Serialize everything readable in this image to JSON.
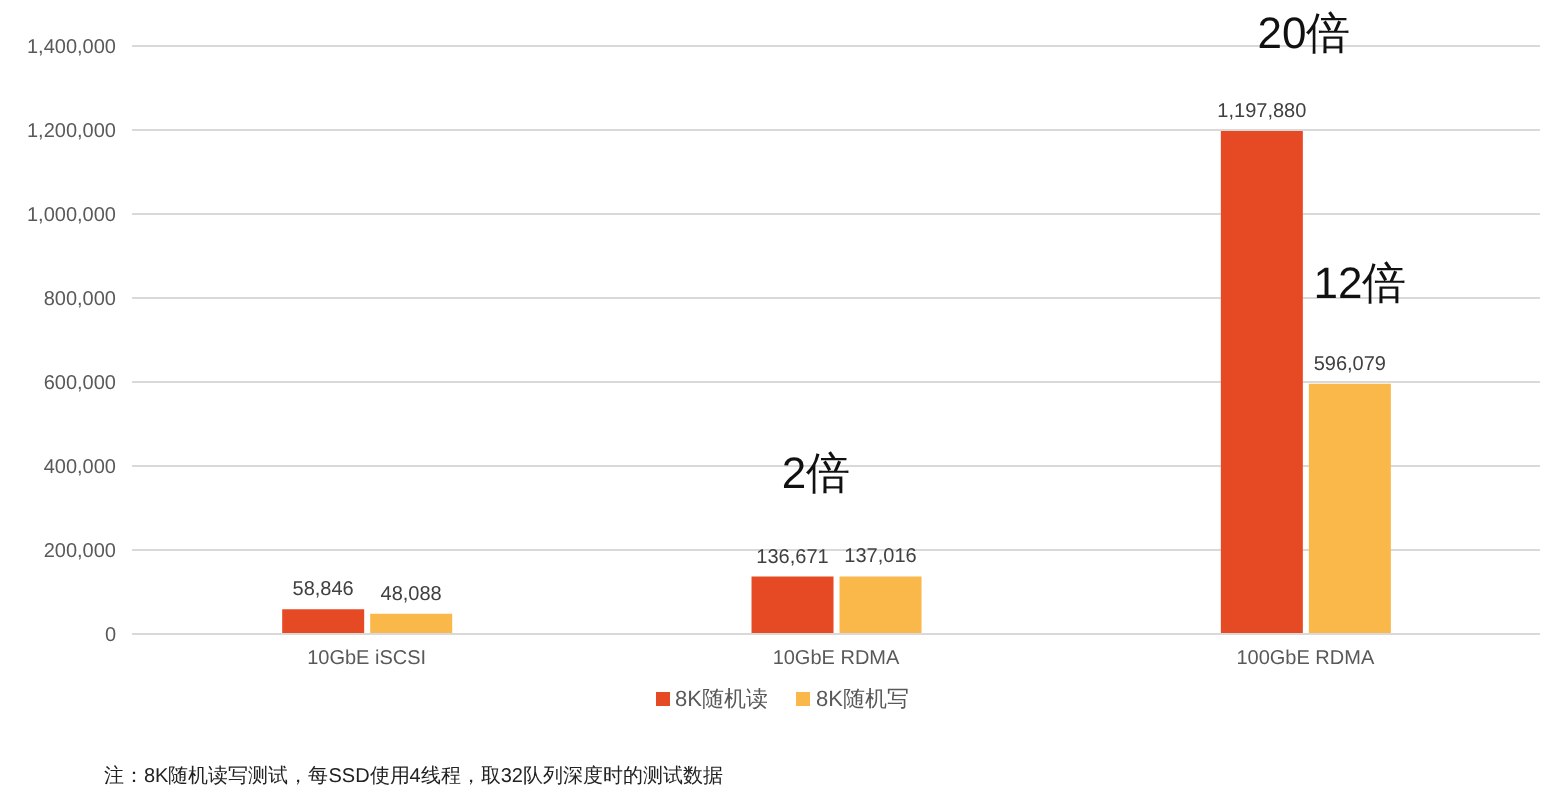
{
  "chart_data": {
    "type": "bar",
    "categories": [
      "10GbE iSCSI",
      "10GbE RDMA",
      "100GbE RDMA"
    ],
    "series": [
      {
        "name": "8K随机读",
        "color": "#e64a25",
        "values": [
          58846,
          136671,
          1197880
        ],
        "value_labels": [
          "58,846",
          "136,671",
          "1,197,880"
        ]
      },
      {
        "name": "8K随机写",
        "color": "#fbb84a",
        "values": [
          48088,
          137016,
          596079
        ],
        "value_labels": [
          "48,088",
          "137,016",
          "596,079"
        ]
      }
    ],
    "ylim": [
      0,
      1400000
    ],
    "yticks": [
      0,
      {
        "value": 200000,
        "label": "200,000"
      },
      {
        "value": 400000,
        "label": "400,000"
      },
      {
        "value": 600000,
        "label": "600,000"
      },
      {
        "value": 800000,
        "label": "800,000"
      },
      {
        "value": 1000000,
        "label": "1,000,000"
      },
      {
        "value": 1200000,
        "label": "1,200,000"
      },
      {
        "value": 1400000,
        "label": "1,400,000"
      }
    ],
    "grid": "y",
    "legend": "bottom",
    "annotations": [
      "2倍",
      "20倍",
      "12倍",
      "注：8K随机读写测试，每SSD使用4线程，取32队列深度时的测试数据"
    ]
  }
}
